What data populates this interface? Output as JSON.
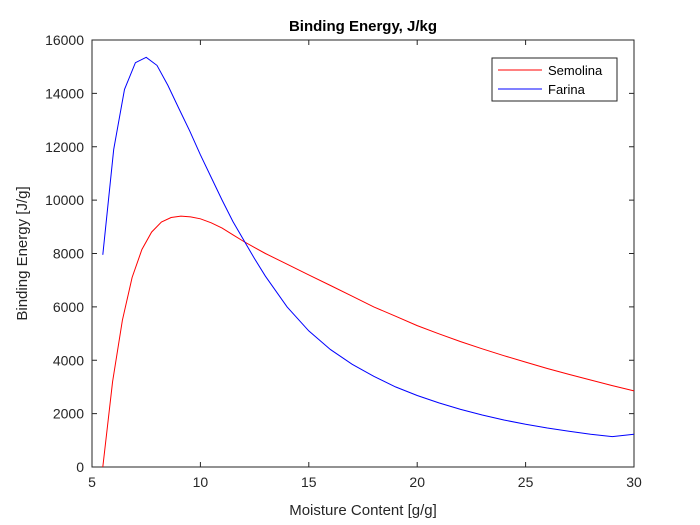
{
  "chart_data": {
    "type": "line",
    "title": "Binding Energy, J/kg",
    "xlabel": "Moisture Content [g/g]",
    "ylabel": "Binding Energy [J/g]",
    "xlim": [
      5,
      30
    ],
    "ylim": [
      0,
      16000
    ],
    "xticks": [
      5,
      10,
      15,
      20,
      25,
      30
    ],
    "yticks": [
      0,
      2000,
      4000,
      6000,
      8000,
      10000,
      12000,
      14000,
      16000
    ],
    "grid": false,
    "legend_position": "top-right",
    "series": [
      {
        "name": "Semolina",
        "color": "#ff0000",
        "x": [
          5.5,
          5.95,
          6.4,
          6.85,
          7.3,
          7.75,
          8.2,
          8.65,
          9.1,
          9.55,
          10,
          10.5,
          11,
          11.5,
          12,
          12.5,
          13,
          14,
          15,
          16,
          17,
          18,
          19,
          20,
          21,
          22,
          23,
          24,
          25,
          26,
          27,
          28,
          29,
          30
        ],
        "y": [
          0,
          3200,
          5500,
          7100,
          8150,
          8800,
          9180,
          9350,
          9400,
          9370,
          9300,
          9150,
          8950,
          8700,
          8450,
          8220,
          8000,
          7600,
          7200,
          6800,
          6400,
          6000,
          5650,
          5300,
          4990,
          4700,
          4430,
          4170,
          3930,
          3690,
          3470,
          3260,
          3050,
          2850
        ]
      },
      {
        "name": "Farina",
        "color": "#0000ff",
        "x": [
          5.5,
          6,
          6.5,
          7,
          7.5,
          8,
          8.5,
          9,
          9.5,
          10,
          10.5,
          11,
          11.5,
          12,
          12.5,
          13,
          14,
          15,
          16,
          17,
          18,
          19,
          20,
          21,
          22,
          23,
          24,
          25,
          26,
          27,
          28,
          29,
          30
        ],
        "y": [
          7950,
          11900,
          14150,
          15150,
          15350,
          15050,
          14300,
          13450,
          12600,
          11700,
          10850,
          10000,
          9200,
          8500,
          7800,
          7150,
          6000,
          5100,
          4400,
          3850,
          3400,
          3000,
          2680,
          2400,
          2160,
          1950,
          1760,
          1600,
          1460,
          1340,
          1230,
          1140,
          1230
        ]
      }
    ]
  }
}
